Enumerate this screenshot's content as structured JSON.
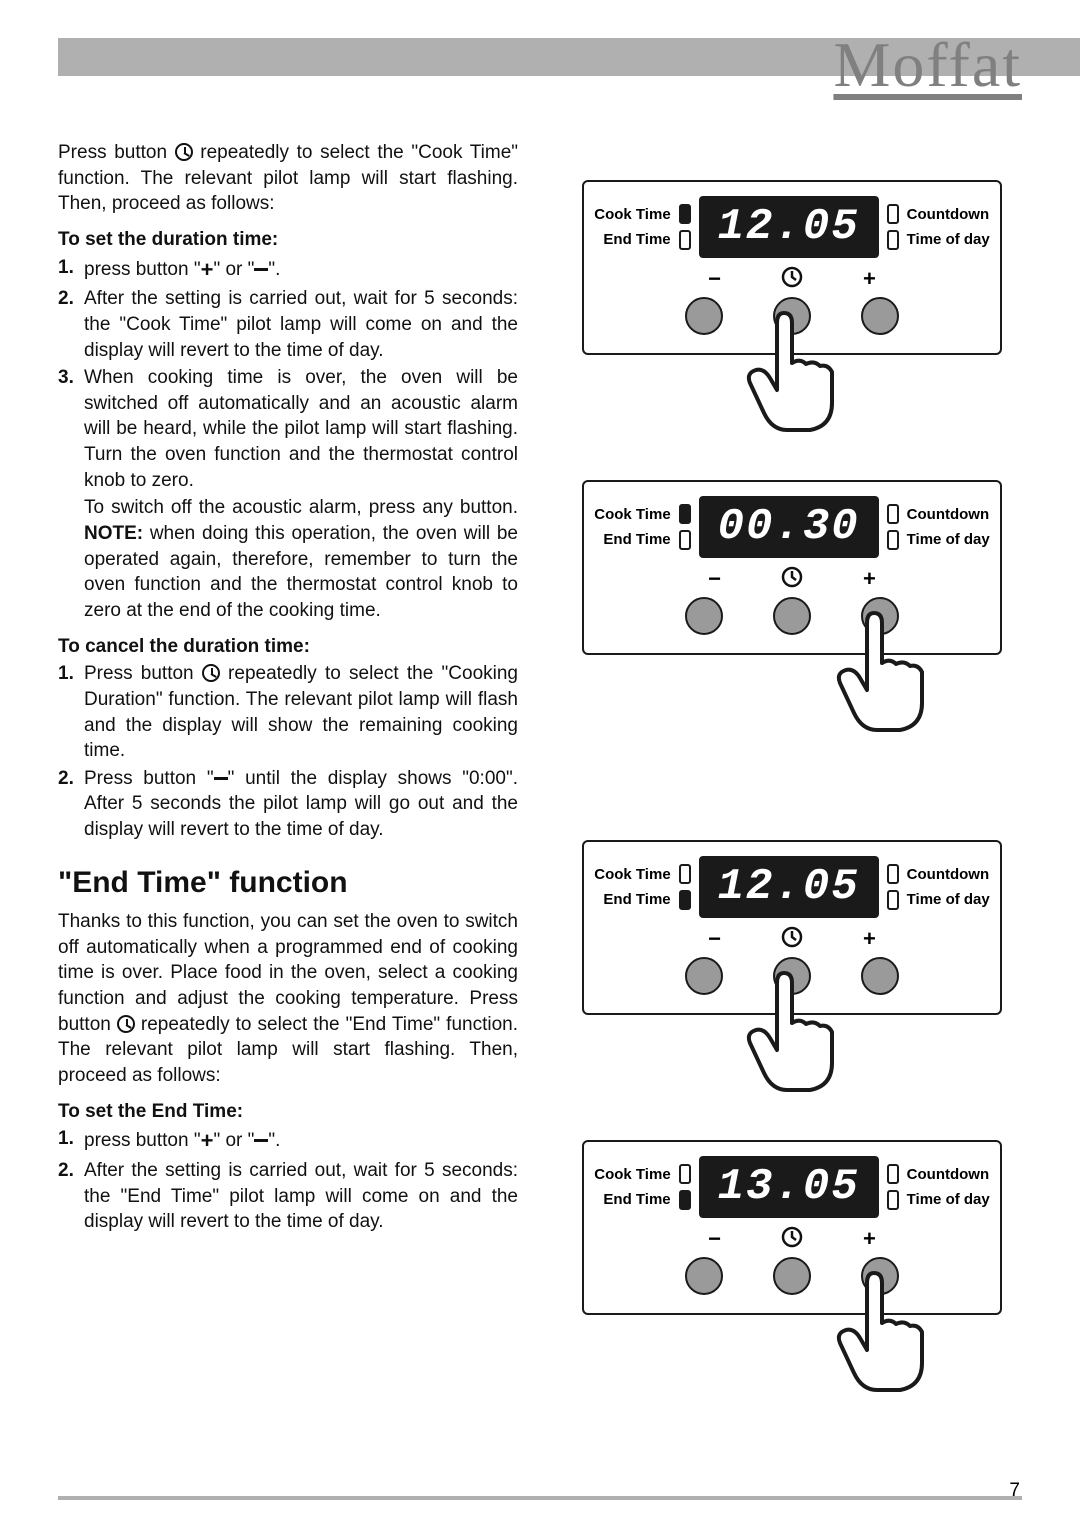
{
  "brand": "Moffat",
  "page_number": "7",
  "left": {
    "intro1": "Press button ",
    "intro2": " repeatedly to select the \"Cook Time\" function. The relevant pilot lamp will start flashing. Then, proceed as follows:",
    "set_duration_title": "To set the duration time:",
    "set_items": [
      {
        "num": "1.",
        "pre": "press button \"",
        "mid": "\" or \"",
        "post": "\"."
      },
      {
        "num": "2.",
        "text": "After the setting is carried out, wait for 5 seconds: the \"Cook Time\" pilot lamp will come on and the display will revert to the time of day."
      },
      {
        "num": "3.",
        "text": "When cooking time is over, the oven will be switched off automatically and an acoustic alarm will be heard, while the pilot lamp will start flashing. Turn the oven function and the thermostat control knob to zero."
      }
    ],
    "set_para_pre": "To switch off the acoustic alarm, press any button. ",
    "set_para_note": "NOTE:",
    "set_para_post": " when doing this operation, the oven will be operated again, therefore, remember to turn the oven function and the thermostat control knob to zero at the end of the cooking time.",
    "cancel_title": "To cancel the duration time:",
    "cancel_items": [
      {
        "num": "1.",
        "pre": "Press button ",
        "post": " repeatedly to select the \"Cooking Duration\" function. The relevant pilot lamp will flash and the display will show the remaining cooking time."
      },
      {
        "num": "2.",
        "pre": "Press button \"",
        "post": "\" until the display shows \"0:00\". After 5 seconds the pilot lamp will go out and the display will revert to the time of day."
      }
    ],
    "h2": "\"End Time\" function",
    "end_intro_pre": "Thanks to this function, you can set the oven to switch off automatically when a programmed end of cooking time is over. Place food in the oven, select a cooking function and adjust the cooking temperature. Press button ",
    "end_intro_post": " repeatedly to select the \"End Time\" function. The relevant pilot lamp will start flashing. Then, proceed as follows:",
    "end_set_title": "To set the End Time:",
    "end_items": [
      {
        "num": "1.",
        "pre": "press button \"",
        "mid": "\" or \"",
        "post": "\"."
      },
      {
        "num": "2.",
        "text": "After the setting is carried out, wait for 5 seconds: the \"End Time\" pilot lamp will come on and the display will revert to the time of day."
      }
    ]
  },
  "labels": {
    "cook_time": "Cook Time",
    "end_time": "End Time",
    "countdown": "Countdown",
    "time_of_day": "Time of day",
    "minus": "−",
    "plus": "+"
  },
  "panels": [
    {
      "display": "12.05",
      "pilot_left": [
        true,
        false
      ],
      "pilot_right": [
        false,
        false
      ],
      "hand_pos": "center"
    },
    {
      "display": "00.30",
      "pilot_left": [
        true,
        false
      ],
      "pilot_right": [
        false,
        false
      ],
      "hand_pos": "right"
    },
    {
      "display": "12.05",
      "pilot_left": [
        false,
        true
      ],
      "pilot_right": [
        false,
        false
      ],
      "hand_pos": "center"
    },
    {
      "display": "13.05",
      "pilot_left": [
        false,
        true
      ],
      "pilot_right": [
        false,
        false
      ],
      "hand_pos": "right"
    }
  ],
  "colors": {
    "header_bar": "#b0b0b0",
    "brand": "#808080",
    "panel_border": "#1a1a1a",
    "display_bg": "#1a1a1a",
    "button_fill": "#9a9a9a"
  }
}
